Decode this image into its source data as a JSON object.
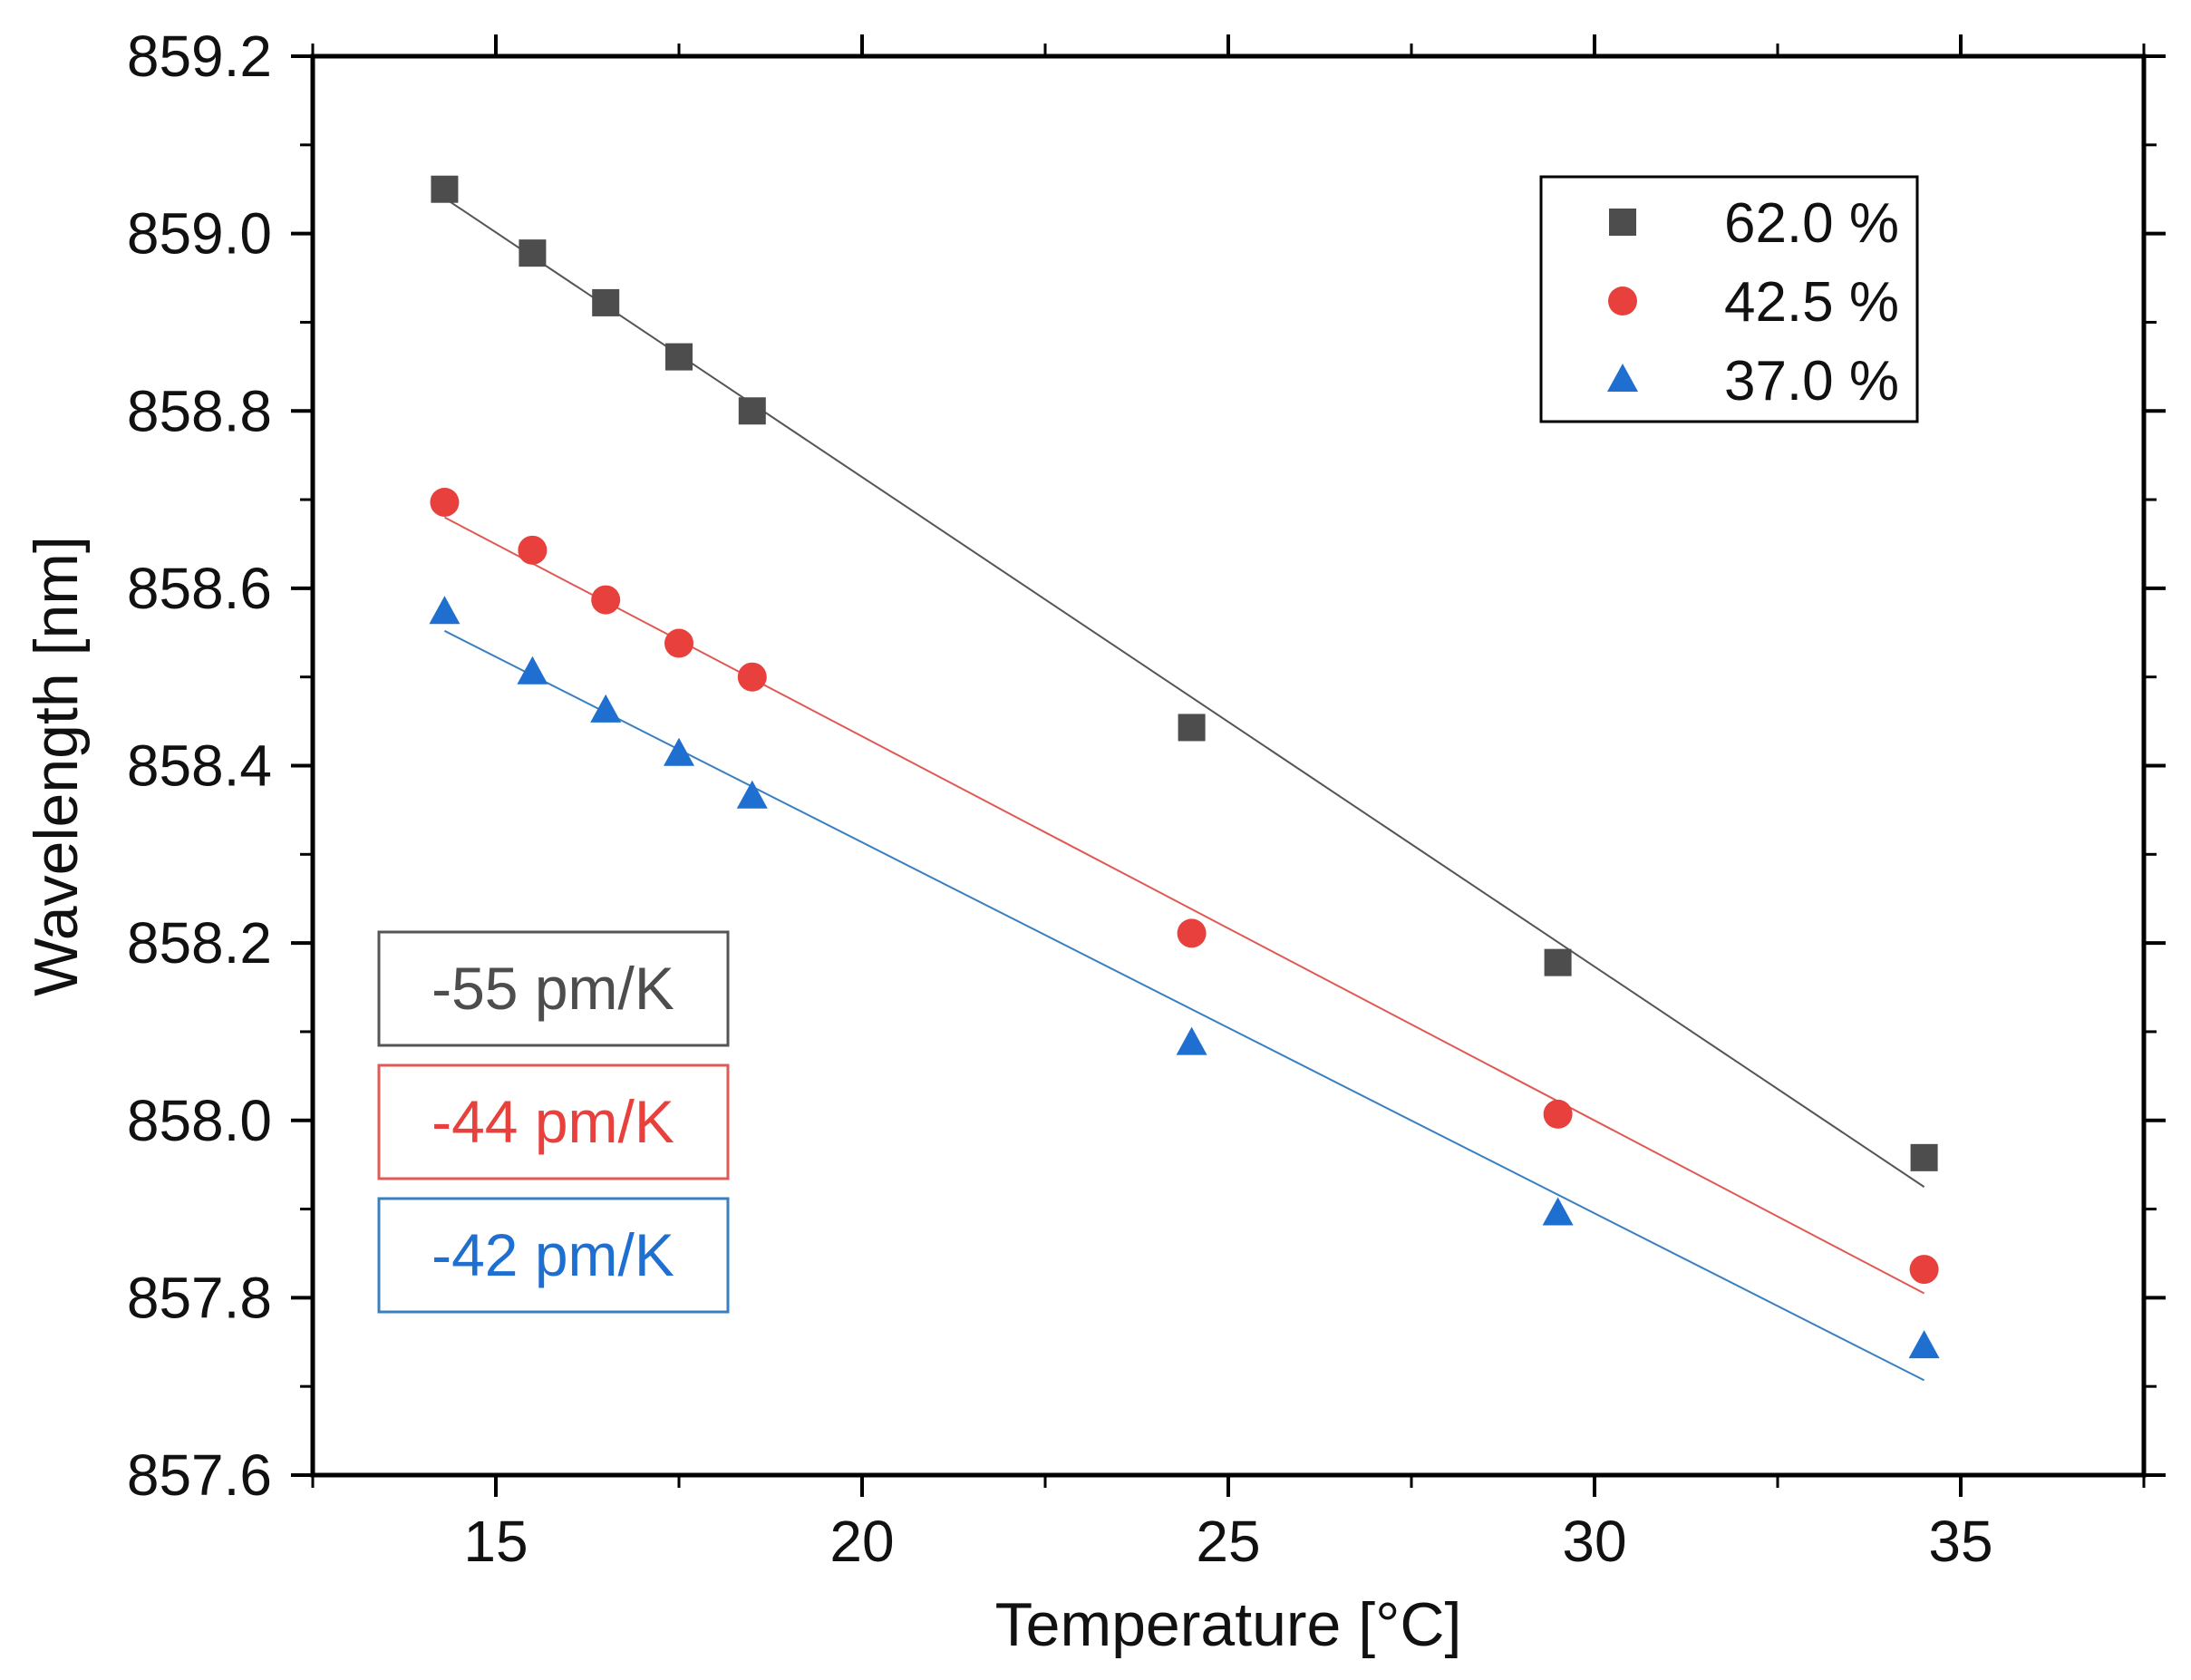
{
  "chart_data": {
    "type": "scatter",
    "title": "",
    "xlabel": "Temperature [°C]",
    "ylabel": "Wavelength [nm]",
    "xlim": [
      12.5,
      37.5
    ],
    "ylim": [
      857.6,
      859.2
    ],
    "x_ticks": [
      15,
      20,
      25,
      30,
      35
    ],
    "x_tick_labels": [
      "15",
      "20",
      "25",
      "30",
      "35"
    ],
    "y_ticks": [
      857.6,
      857.8,
      858.0,
      858.2,
      858.4,
      858.6,
      858.8,
      859.0,
      859.2
    ],
    "y_tick_labels": [
      "857.6",
      "857.8",
      "858.0",
      "858.2",
      "858.4",
      "858.6",
      "858.8",
      "859.0",
      "859.2"
    ],
    "grid": false,
    "legend_position": "top-right",
    "series": [
      {
        "name": "62.0 %",
        "marker": "square",
        "color": "#4d4d4d",
        "fit_color": "#555555",
        "x": [
          14.3,
          15.5,
          16.5,
          17.5,
          18.5,
          24.5,
          29.5,
          34.5
        ],
        "y": [
          859.05,
          858.978,
          858.922,
          858.861,
          858.8,
          858.443,
          858.178,
          857.958
        ],
        "fit": {
          "x": [
            14.3,
            34.5
          ],
          "y": [
            859.04,
            857.925
          ]
        }
      },
      {
        "name": "42.5 %",
        "marker": "circle",
        "color": "#e8403c",
        "fit_color": "#e05a55",
        "x": [
          14.3,
          15.5,
          16.5,
          17.5,
          18.5,
          24.5,
          29.5,
          34.5
        ],
        "y": [
          858.697,
          858.643,
          858.587,
          858.538,
          858.5,
          858.211,
          858.007,
          857.832
        ],
        "fit": {
          "x": [
            14.3,
            34.5
          ],
          "y": [
            858.68,
            857.805
          ]
        }
      },
      {
        "name": "37.0 %",
        "marker": "triangle",
        "color": "#1f6fd1",
        "fit_color": "#3a7fc0",
        "x": [
          14.3,
          15.5,
          16.5,
          17.5,
          18.5,
          24.5,
          29.5,
          34.5
        ],
        "y": [
          858.573,
          858.505,
          858.462,
          858.413,
          858.365,
          858.087,
          857.895,
          857.745
        ],
        "fit": {
          "x": [
            14.3,
            34.5
          ],
          "y": [
            858.552,
            857.707
          ]
        }
      }
    ],
    "annotations": [
      {
        "text": "-55 pm/K",
        "color": "#4d4d4d",
        "border": "#555555"
      },
      {
        "text": "-44 pm/K",
        "color": "#e8403c",
        "border": "#e05a55"
      },
      {
        "text": "-42 pm/K",
        "color": "#1f6fd1",
        "border": "#3a7fc0"
      }
    ]
  }
}
